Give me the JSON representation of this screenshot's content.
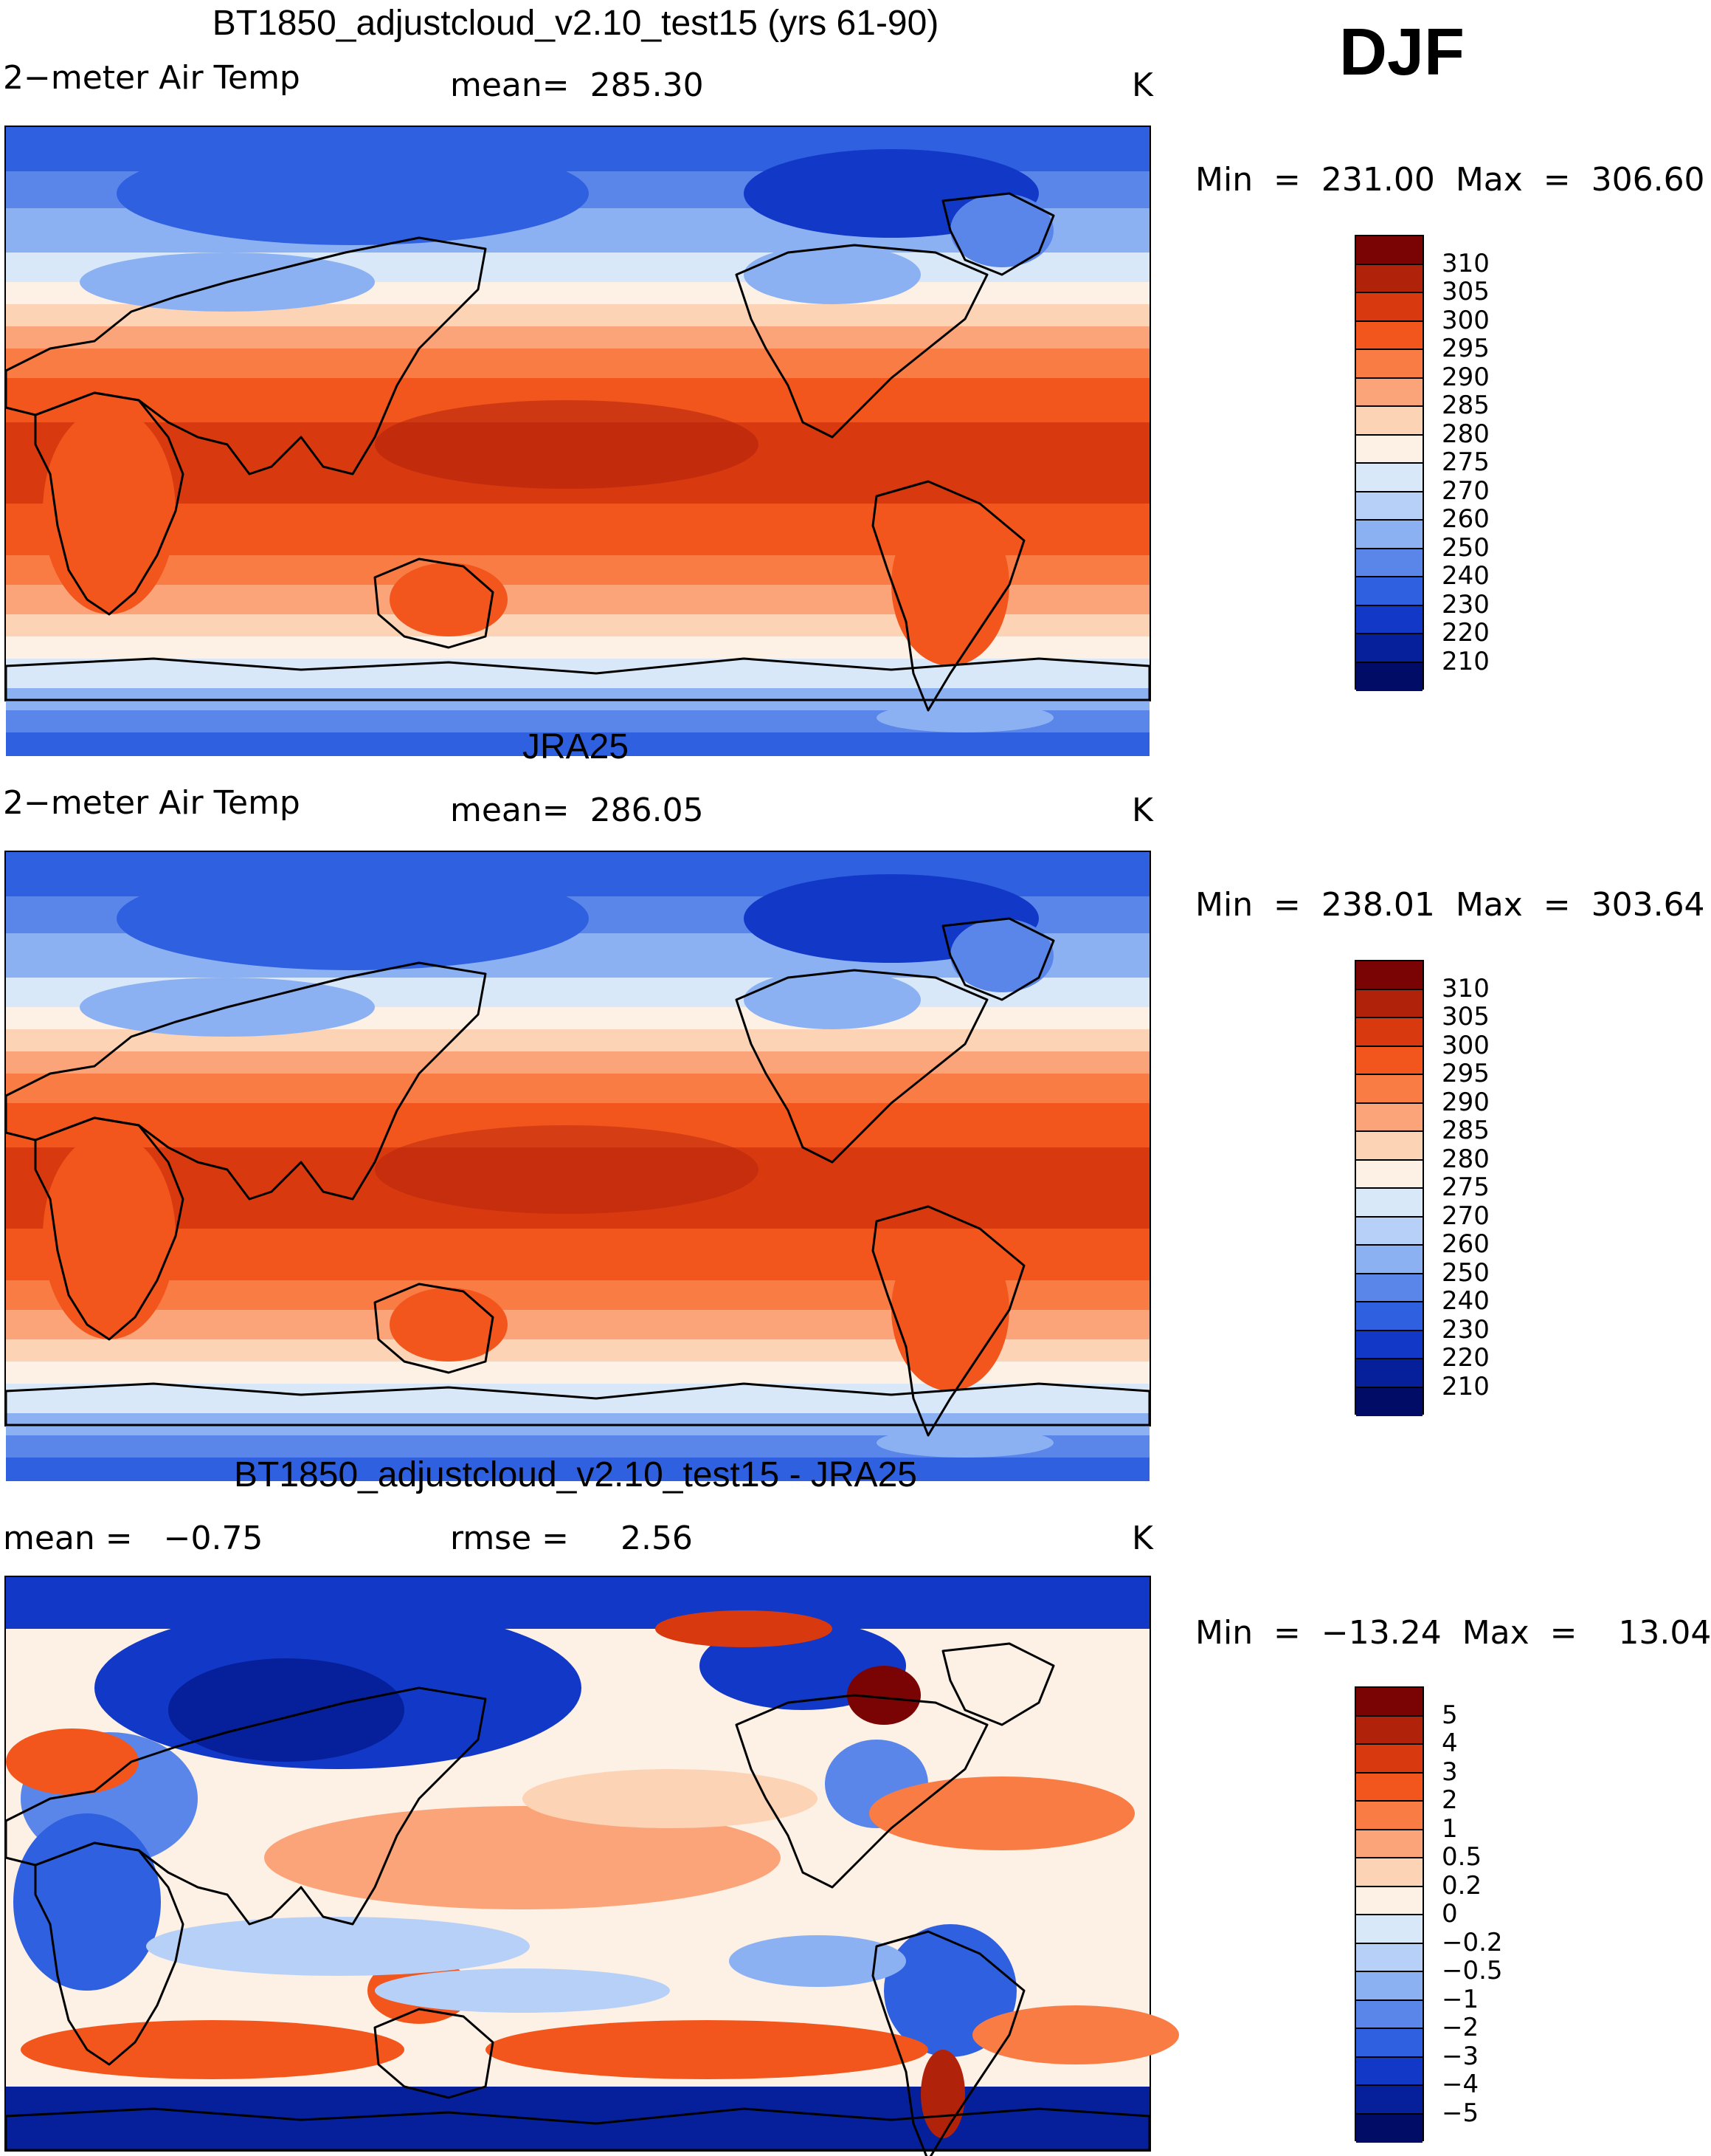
{
  "season_label": "DJF",
  "panels": [
    {
      "title": "BT1850_adjustcloud_v2.10_test15 (yrs 61-90)",
      "left_label": "2−meter Air Temp",
      "center_label": "mean=  285.30",
      "units": "K",
      "min_max": "Min  =  231.00  Max  =  306.60",
      "colorbar_labels": [
        "310",
        "305",
        "300",
        "295",
        "290",
        "285",
        "280",
        "275",
        "270",
        "260",
        "250",
        "240",
        "230",
        "220",
        "210"
      ],
      "colorbar_colors": [
        "#7a0403",
        "#b1220b",
        "#d8390f",
        "#f2561d",
        "#fa7c45",
        "#fba479",
        "#fdd3b5",
        "#fdf0e4",
        "#d9e8f9",
        "#b7d0f7",
        "#8cb1f2",
        "#5a86ea",
        "#2f60e0",
        "#1238c8",
        "#061f9a",
        "#000c66"
      ]
    },
    {
      "title": "JRA25",
      "left_label": "2−meter Air Temp",
      "center_label": "mean=  286.05",
      "units": "K",
      "min_max": "Min  =  238.01  Max  =  303.64",
      "colorbar_labels": [
        "310",
        "305",
        "300",
        "295",
        "290",
        "285",
        "280",
        "275",
        "270",
        "260",
        "250",
        "240",
        "230",
        "220",
        "210"
      ],
      "colorbar_colors": [
        "#7a0403",
        "#b1220b",
        "#d8390f",
        "#f2561d",
        "#fa7c45",
        "#fba479",
        "#fdd3b5",
        "#fdf0e4",
        "#d9e8f9",
        "#b7d0f7",
        "#8cb1f2",
        "#5a86ea",
        "#2f60e0",
        "#1238c8",
        "#061f9a",
        "#000c66"
      ]
    },
    {
      "title": "BT1850_adjustcloud_v2.10_test15 - JRA25",
      "left_label": "mean =   −0.75",
      "center_label": "rmse =     2.56",
      "units": "K",
      "min_max": "Min  =  −13.24  Max  =    13.04",
      "colorbar_labels": [
        "5",
        "4",
        "3",
        "2",
        "1",
        "0.5",
        "0.2",
        "0",
        "−0.2",
        "−0.5",
        "−1",
        "−2",
        "−3",
        "−4",
        "−5"
      ],
      "colorbar_colors": [
        "#7a0403",
        "#b1220b",
        "#d8390f",
        "#f2561d",
        "#fa7c45",
        "#fba479",
        "#fdd3b5",
        "#fdf0e4",
        "#d9e8f9",
        "#b7d0f7",
        "#8cb1f2",
        "#5a86ea",
        "#2f60e0",
        "#1238c8",
        "#061f9a",
        "#000c66"
      ]
    }
  ]
}
